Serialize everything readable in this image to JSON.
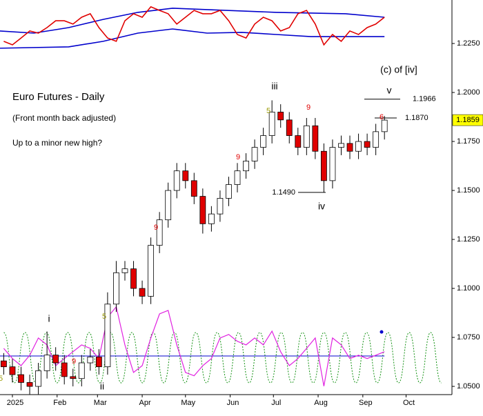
{
  "chart_data": {
    "type": "candlestick",
    "title": "Euro Futures - Daily",
    "subtitle": "(Front month back adjusted)",
    "note": "Up to a minor new high?",
    "xlim": [
      -8.6,
      304.8
    ],
    "ylim": [
      1.0458,
      1.2472
    ],
    "xticks": [
      {
        "value": 0,
        "label": "2025"
      },
      {
        "value": 31,
        "label": "Feb"
      },
      {
        "value": 59,
        "label": "Mar"
      },
      {
        "value": 90,
        "label": "Apr"
      },
      {
        "value": 120,
        "label": "May"
      },
      {
        "value": 151,
        "label": "Jun"
      },
      {
        "value": 181,
        "label": "Jul"
      },
      {
        "value": 212,
        "label": "Aug"
      },
      {
        "value": 243,
        "label": "Sep"
      },
      {
        "value": 273,
        "label": "Oct"
      }
    ],
    "yticks": [
      {
        "value": 1.05,
        "label": "1.0500"
      },
      {
        "value": 1.075,
        "label": "1.0750"
      },
      {
        "value": 1.1,
        "label": "1.1000"
      },
      {
        "value": 1.125,
        "label": "1.1250"
      },
      {
        "value": 1.15,
        "label": "1.1500"
      },
      {
        "value": 1.175,
        "label": "1.1750"
      },
      {
        "value": 1.2,
        "label": "1.2000"
      },
      {
        "value": 1.225,
        "label": "1.2250"
      }
    ],
    "up_color": "#ffffff",
    "down_color": "#e00000",
    "x": [
      -6,
      0,
      6,
      12,
      18,
      24,
      30,
      36,
      42,
      48,
      54,
      60,
      66,
      72,
      78,
      84,
      90,
      96,
      102,
      108,
      114,
      120,
      126,
      132,
      138,
      144,
      150,
      156,
      162,
      168,
      174,
      180,
      186,
      192,
      198,
      204,
      210,
      216,
      222,
      228,
      234,
      240,
      246,
      252,
      258
    ],
    "open": [
      1.063,
      1.06,
      1.056,
      1.052,
      1.05,
      1.058,
      1.066,
      1.062,
      1.055,
      1.054,
      1.062,
      1.065,
      1.06,
      1.092,
      1.108,
      1.11,
      1.1,
      1.096,
      1.122,
      1.135,
      1.15,
      1.16,
      1.155,
      1.147,
      1.133,
      1.138,
      1.146,
      1.153,
      1.16,
      1.165,
      1.172,
      1.178,
      1.19,
      1.186,
      1.178,
      1.172,
      1.183,
      1.17,
      1.155,
      1.172,
      1.174,
      1.17,
      1.175,
      1.172,
      1.18
    ],
    "high": [
      1.067,
      1.064,
      1.06,
      1.056,
      1.062,
      1.078,
      1.07,
      1.066,
      1.059,
      1.066,
      1.069,
      1.069,
      1.098,
      1.114,
      1.114,
      1.114,
      1.104,
      1.126,
      1.139,
      1.154,
      1.164,
      1.164,
      1.159,
      1.151,
      1.142,
      1.15,
      1.157,
      1.164,
      1.169,
      1.176,
      1.182,
      1.196,
      1.194,
      1.19,
      1.182,
      1.187,
      1.187,
      1.174,
      1.176,
      1.178,
      1.178,
      1.179,
      1.179,
      1.184,
      1.188
    ],
    "low": [
      1.056,
      1.052,
      1.048,
      1.046,
      1.046,
      1.054,
      1.058,
      1.051,
      1.05,
      1.05,
      1.058,
      1.056,
      1.056,
      1.088,
      1.104,
      1.096,
      1.092,
      1.092,
      1.118,
      1.131,
      1.146,
      1.151,
      1.143,
      1.128,
      1.129,
      1.134,
      1.142,
      1.149,
      1.156,
      1.161,
      1.168,
      1.174,
      1.182,
      1.174,
      1.168,
      1.168,
      1.166,
      1.149,
      1.151,
      1.168,
      1.166,
      1.166,
      1.168,
      1.168,
      1.176
    ],
    "close": [
      1.06,
      1.056,
      1.052,
      1.05,
      1.058,
      1.066,
      1.062,
      1.055,
      1.054,
      1.062,
      1.065,
      1.06,
      1.092,
      1.108,
      1.11,
      1.1,
      1.096,
      1.122,
      1.135,
      1.15,
      1.16,
      1.155,
      1.147,
      1.133,
      1.138,
      1.146,
      1.153,
      1.16,
      1.165,
      1.172,
      1.178,
      1.19,
      1.186,
      1.178,
      1.172,
      1.183,
      1.17,
      1.155,
      1.172,
      1.174,
      1.17,
      1.175,
      1.172,
      1.18,
      1.1859
    ],
    "last_price": 1.1859,
    "last_price_color": "#ffff00",
    "oscillator": {
      "color": "#e00000",
      "values": [
        1.2261,
        1.2243,
        1.2278,
        1.2314,
        1.2303,
        1.2331,
        1.2366,
        1.2366,
        1.2349,
        1.2384,
        1.2402,
        1.2331,
        1.2278,
        1.2261,
        1.2366,
        1.2402,
        1.2384,
        1.2437,
        1.2419,
        1.2402,
        1.2349,
        1.2384,
        1.2419,
        1.2402,
        1.2402,
        1.2419,
        1.2366,
        1.2296,
        1.2278,
        1.2349,
        1.2384,
        1.2366,
        1.2314,
        1.2331,
        1.2402,
        1.2419,
        1.2349,
        1.2243,
        1.2296,
        1.2261,
        1.2314,
        1.2296,
        1.2331,
        1.2349,
        1.2384
      ]
    },
    "upper_band": {
      "color": "#0000cc",
      "x": [
        -9,
        15,
        39,
        63,
        87,
        111,
        135,
        183,
        231,
        258
      ],
      "values": [
        1.2314,
        1.2303,
        1.2331,
        1.2373,
        1.2409,
        1.243,
        1.2423,
        1.2409,
        1.2402,
        1.2384
      ]
    },
    "lower_band": {
      "color": "#0000cc",
      "x": [
        -9,
        39,
        63,
        87,
        111,
        135,
        159,
        183,
        207,
        258
      ],
      "values": [
        1.2226,
        1.2233,
        1.2261,
        1.2303,
        1.2324,
        1.2303,
        1.2307,
        1.2296,
        1.2285,
        1.2285
      ]
    },
    "momentum": {
      "color": "#e020e0",
      "values": [
        1.0694,
        1.0642,
        1.0606,
        1.0659,
        1.0747,
        1.0712,
        1.0606,
        1.0642,
        1.0677,
        1.0712,
        1.0694,
        1.0642,
        1.0853,
        1.0906,
        1.0712,
        1.0571,
        1.0606,
        1.0747,
        1.087,
        1.0888,
        1.0712,
        1.0571,
        1.0554,
        1.0606,
        1.0642,
        1.0747,
        1.0765,
        1.073,
        1.0712,
        1.0747,
        1.0712,
        1.0782,
        1.0677,
        1.0606,
        1.0642,
        1.0694,
        1.0747,
        1.0501,
        1.0747,
        1.0712,
        1.0642,
        1.0659,
        1.0642,
        1.0659,
        1.0677
      ]
    },
    "cycle": {
      "color": "#109010",
      "x": [
        -6,
        1.4,
        8.8,
        16.2,
        23.6,
        31,
        38.4,
        45.8,
        53.2,
        60.6,
        68,
        75.4,
        82.8,
        90.2,
        97.6,
        105,
        112.4,
        119.8,
        127.2,
        134.6,
        142,
        149.4,
        156.8,
        164.2,
        171.6,
        179,
        186.4,
        193.8,
        201.2,
        208.6,
        216,
        223.4,
        230.8,
        238.2,
        245.6,
        253,
        260.4,
        267.8,
        275.2,
        282.6,
        290,
        297.4
      ],
      "values": [
        1.0775,
        1.0518,
        1.0775,
        1.0518,
        1.0775,
        1.0518,
        1.0775,
        1.0518,
        1.0775,
        1.0518,
        1.0775,
        1.0518,
        1.0775,
        1.0518,
        1.0775,
        1.0518,
        1.0775,
        1.0518,
        1.0775,
        1.0518,
        1.0775,
        1.0518,
        1.0775,
        1.0518,
        1.0775,
        1.0518,
        1.0775,
        1.0518,
        1.0775,
        1.0518,
        1.0775,
        1.0518,
        1.0775,
        1.0518,
        1.0775,
        1.0518,
        1.0775,
        1.0518,
        1.0775,
        1.0518,
        1.0775,
        1.0518
      ]
    },
    "cycle_dot": {
      "color": "#0000cc",
      "x": 256,
      "value": 1.0778
    },
    "baseline": {
      "color": "#0000cc",
      "value": 1.0655
    },
    "levels": [
      1.1966,
      {
        "value": 1.187,
        "label": "1.1870"
      },
      {
        "value": 1.149,
        "label": "1.1490"
      }
    ],
    "annotations": [
      "(c) of [iv]",
      "v",
      "iii",
      "iv",
      "i",
      "ii",
      "9",
      "9",
      "9",
      "9",
      "5",
      "5",
      "5",
      "6"
    ]
  }
}
